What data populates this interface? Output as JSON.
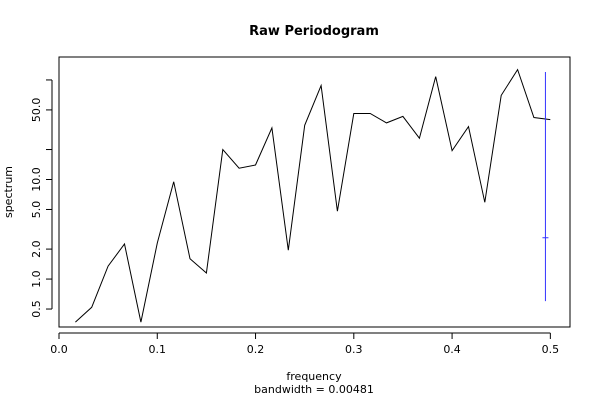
{
  "chart_data": {
    "type": "line",
    "title": "Raw Periodogram",
    "xlabel": "frequency",
    "sublabel": "bandwidth = 0.00481",
    "ylabel": "spectrum",
    "log_y": true,
    "xlim": [
      0.0,
      0.52
    ],
    "ylim": [
      0.33,
      170
    ],
    "x_ticks": [
      0.0,
      0.1,
      0.2,
      0.3,
      0.4,
      0.5
    ],
    "x_tick_labels": [
      "0.0",
      "0.1",
      "0.2",
      "0.3",
      "0.4",
      "0.5"
    ],
    "y_ticks": [
      0.5,
      1.0,
      2.0,
      5.0,
      10.0,
      50.0
    ],
    "y_tick_labels": [
      "0.5",
      "1.0",
      "2.0",
      "5.0",
      "10.0",
      "50.0"
    ],
    "y_minor_ticks": [
      20,
      100
    ],
    "series": [
      {
        "color": "#000000",
        "x": [
          0.0167,
          0.0333,
          0.05,
          0.0667,
          0.0833,
          0.1,
          0.1167,
          0.1333,
          0.15,
          0.1667,
          0.1833,
          0.2,
          0.2167,
          0.2333,
          0.25,
          0.2667,
          0.2833,
          0.3,
          0.3167,
          0.3333,
          0.35,
          0.3667,
          0.3833,
          0.4,
          0.4167,
          0.4333,
          0.45,
          0.4667,
          0.4833,
          0.5
        ],
        "y": [
          0.37,
          0.52,
          1.35,
          2.25,
          0.37,
          2.3,
          9.5,
          1.6,
          1.15,
          20,
          13,
          14,
          33,
          1.95,
          35,
          88,
          4.8,
          46,
          46,
          37,
          43,
          26,
          108,
          19.5,
          34,
          5.9,
          70,
          127,
          42,
          40
        ]
      }
    ],
    "confidence_bar": {
      "color": "#3333ff",
      "x": 0.495,
      "y_low": 0.6,
      "y_high": 120,
      "y_mid": 2.6
    },
    "grid": false,
    "legend": "none"
  }
}
